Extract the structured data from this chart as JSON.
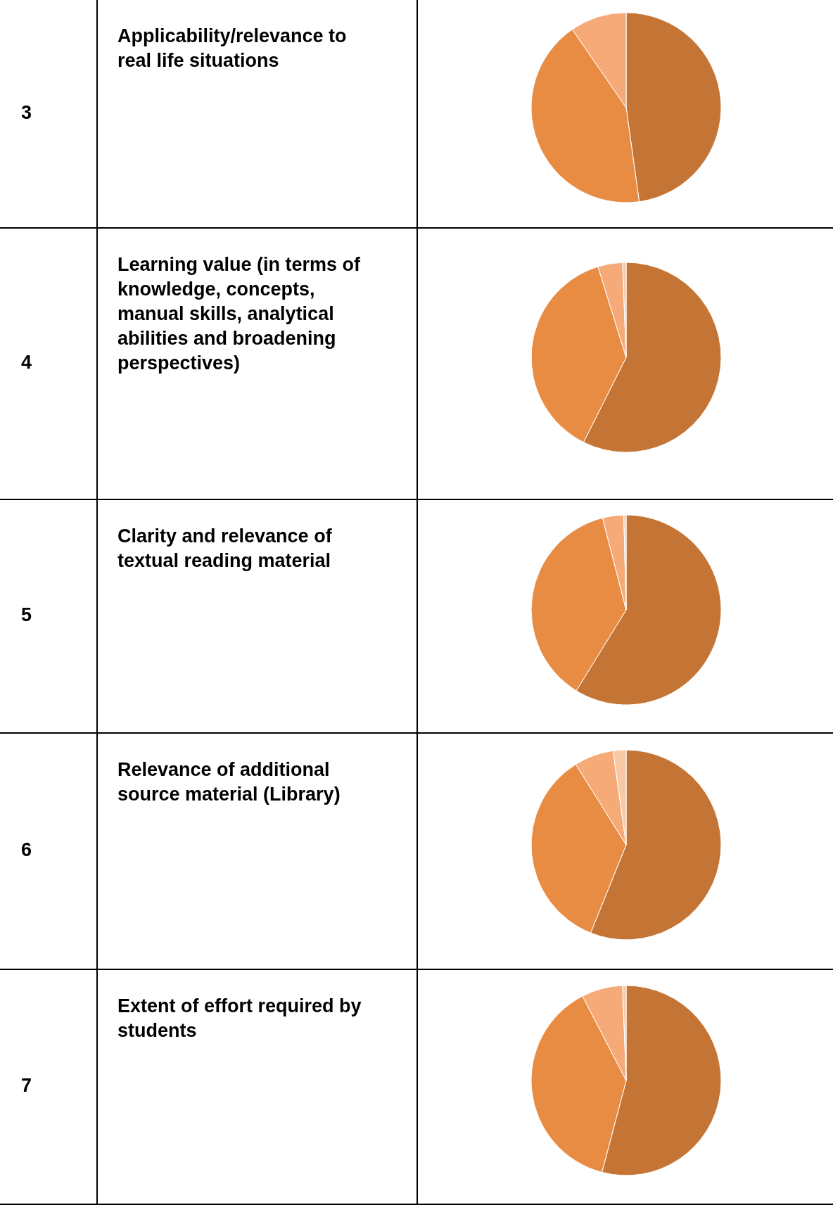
{
  "chart_data": [
    {
      "type": "pie",
      "title": "Applicability/relevance to real life situations",
      "annotations": [
        "3"
      ],
      "categories": [
        null,
        null,
        null
      ],
      "values": [
        47.8,
        42.6,
        9.6
      ],
      "colors": [
        "#c47535",
        "#e88c44",
        "#f5aa78"
      ]
    },
    {
      "type": "pie",
      "title": "Learning value (in terms of knowledge, concepts, manual skills, analytical abilities and broadening perspectives)",
      "annotations": [
        "4"
      ],
      "categories": [
        null,
        null,
        null,
        null
      ],
      "values": [
        57.4,
        37.8,
        4.2,
        0.6
      ],
      "colors": [
        "#c47535",
        "#e88c44",
        "#f5aa78",
        "#f9c9a6"
      ]
    },
    {
      "type": "pie",
      "title": "Clarity and relevance of textual reading material",
      "annotations": [
        "5"
      ],
      "categories": [
        null,
        null,
        null,
        null
      ],
      "values": [
        58.8,
        37.2,
        3.6,
        0.4
      ],
      "colors": [
        "#c47535",
        "#e88c44",
        "#f5aa78",
        "#f9c9a6"
      ]
    },
    {
      "type": "pie",
      "title": "Relevance of additional source material (Library)",
      "annotations": [
        "6"
      ],
      "categories": [
        null,
        null,
        null,
        null
      ],
      "values": [
        56.1,
        35,
        6.7,
        2.2
      ],
      "colors": [
        "#c47535",
        "#e88c44",
        "#f5aa78",
        "#f9c9a6"
      ]
    },
    {
      "type": "pie",
      "title": "Extent of effort required by students",
      "annotations": [
        "7"
      ],
      "categories": [
        null,
        null,
        null,
        null
      ],
      "values": [
        54.1,
        38.3,
        7,
        0.6
      ],
      "colors": [
        "#c47535",
        "#e88c44",
        "#f5aa78",
        "#f9c9a6"
      ]
    }
  ]
}
